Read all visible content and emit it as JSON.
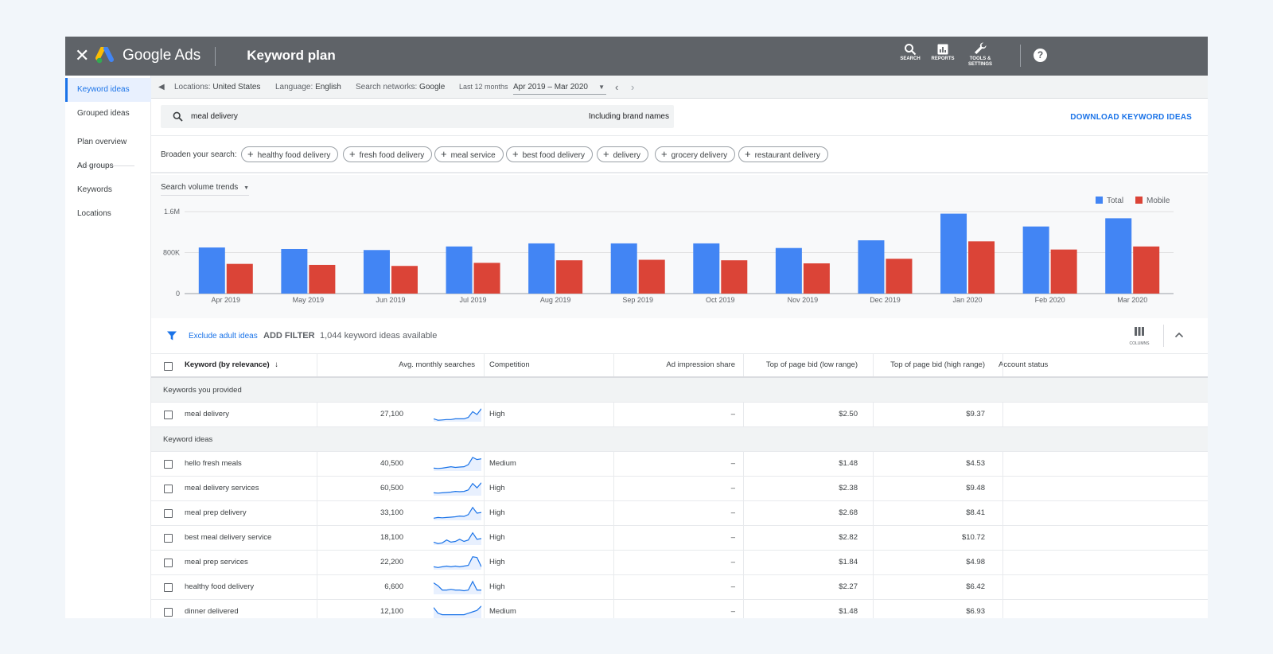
{
  "header": {
    "close_icon": "close-icon",
    "brand": "Google Ads",
    "title": "Keyword plan",
    "tools": [
      {
        "label": "SEARCH",
        "icon": "search-icon"
      },
      {
        "label": "REPORTS",
        "icon": "reports-icon"
      },
      {
        "label": "TOOLS & SETTINGS",
        "icon": "wrench-icon"
      }
    ],
    "help_icon": "help-icon"
  },
  "sidebar": {
    "items": [
      {
        "label": "Keyword ideas",
        "active": true
      },
      {
        "label": "Grouped ideas",
        "active": false
      },
      {
        "label": "Plan overview",
        "active": false
      },
      {
        "label": "Ad groups",
        "active": false
      },
      {
        "label": "Keywords",
        "active": false
      },
      {
        "label": "Locations",
        "active": false
      }
    ]
  },
  "filters": {
    "locations_key": "Locations:",
    "locations_value": "United States",
    "language_key": "Language:",
    "language_value": "English",
    "networks_key": "Search networks:",
    "networks_value": "Google",
    "period_label": "Last 12 months",
    "date_range": "Apr 2019 – Mar 2020"
  },
  "search": {
    "query": "meal delivery",
    "brand_option": "Including brand names",
    "download_label": "DOWNLOAD KEYWORD IDEAS"
  },
  "broaden": {
    "label": "Broaden your search:",
    "chips": [
      "healthy food delivery",
      "fresh food delivery",
      "meal service",
      "best food delivery",
      "delivery",
      "grocery delivery",
      "restaurant delivery"
    ]
  },
  "chart_selector": "Search volume trends",
  "chart_data": {
    "type": "bar",
    "categories": [
      "Apr 2019",
      "May 2019",
      "Jun 2019",
      "Jul 2019",
      "Aug 2019",
      "Sep 2019",
      "Oct 2019",
      "Nov 2019",
      "Dec 2019",
      "Jan 2020",
      "Feb 2020",
      "Mar 2020"
    ],
    "series": [
      {
        "name": "Total",
        "color": "#4285f4",
        "values": [
          900000,
          870000,
          850000,
          920000,
          980000,
          980000,
          980000,
          890000,
          1040000,
          1560000,
          1310000,
          1470000
        ]
      },
      {
        "name": "Mobile",
        "color": "#db4437",
        "values": [
          580000,
          560000,
          540000,
          600000,
          650000,
          660000,
          650000,
          590000,
          680000,
          1020000,
          860000,
          920000
        ]
      }
    ],
    "yticks": [
      "0",
      "800K",
      "1.6M"
    ],
    "ylim": [
      0,
      1600000
    ],
    "legend_position": "top-right",
    "grid": true
  },
  "toolbar": {
    "exclude_label": "Exclude adult ideas",
    "add_filter": "ADD FILTER",
    "available": "1,044 keyword ideas available",
    "columns_label": "COLUMNS"
  },
  "table": {
    "headers": {
      "keyword": "Keyword (by relevance)",
      "avg": "Avg. monthly searches",
      "competition": "Competition",
      "impression": "Ad impression share",
      "low": "Top of page bid (low range)",
      "high": "Top of page bid (high range)",
      "account": "Account status"
    },
    "group_provided": "Keywords you provided",
    "group_ideas": "Keyword ideas",
    "provided": [
      {
        "keyword": "meal delivery",
        "avg": "27,100",
        "competition": "High",
        "impression": "–",
        "low": "$2.50",
        "high": "$9.37",
        "trend": [
          0.2,
          0.1,
          0.12,
          0.15,
          0.15,
          0.2,
          0.2,
          0.2,
          0.3,
          0.7,
          0.5,
          0.9
        ]
      }
    ],
    "ideas": [
      {
        "keyword": "hello fresh meals",
        "avg": "40,500",
        "competition": "Medium",
        "impression": "–",
        "low": "$1.48",
        "high": "$4.53",
        "trend": [
          0.2,
          0.18,
          0.2,
          0.25,
          0.3,
          0.25,
          0.28,
          0.3,
          0.45,
          0.95,
          0.8,
          0.85
        ]
      },
      {
        "keyword": "meal delivery services",
        "avg": "60,500",
        "competition": "High",
        "impression": "–",
        "low": "$2.38",
        "high": "$9.48",
        "trend": [
          0.2,
          0.18,
          0.2,
          0.22,
          0.25,
          0.3,
          0.28,
          0.3,
          0.4,
          0.85,
          0.55,
          0.9
        ]
      },
      {
        "keyword": "meal prep delivery",
        "avg": "33,100",
        "competition": "High",
        "impression": "–",
        "low": "$2.68",
        "high": "$8.41",
        "trend": [
          0.15,
          0.2,
          0.18,
          0.2,
          0.22,
          0.25,
          0.3,
          0.28,
          0.4,
          0.9,
          0.5,
          0.55
        ]
      },
      {
        "keyword": "best meal delivery service",
        "avg": "18,100",
        "competition": "High",
        "impression": "–",
        "low": "$2.82",
        "high": "$10.72",
        "trend": [
          0.2,
          0.1,
          0.15,
          0.35,
          0.2,
          0.25,
          0.4,
          0.25,
          0.35,
          0.85,
          0.4,
          0.45
        ]
      },
      {
        "keyword": "meal prep services",
        "avg": "22,200",
        "competition": "High",
        "impression": "–",
        "low": "$1.84",
        "high": "$4.98",
        "trend": [
          0.2,
          0.15,
          0.2,
          0.25,
          0.2,
          0.25,
          0.2,
          0.25,
          0.3,
          0.9,
          0.85,
          0.2
        ]
      },
      {
        "keyword": "healthy food delivery",
        "avg": "6,600",
        "competition": "High",
        "impression": "–",
        "low": "$2.27",
        "high": "$6.42",
        "trend": [
          0.8,
          0.6,
          0.3,
          0.3,
          0.35,
          0.3,
          0.3,
          0.25,
          0.3,
          0.9,
          0.3,
          0.3
        ]
      },
      {
        "keyword": "dinner delivered",
        "avg": "12,100",
        "competition": "Medium",
        "impression": "–",
        "low": "$1.48",
        "high": "$6.93",
        "trend": [
          0.8,
          0.4,
          0.3,
          0.3,
          0.3,
          0.3,
          0.3,
          0.3,
          0.4,
          0.5,
          0.6,
          0.9
        ]
      }
    ]
  }
}
